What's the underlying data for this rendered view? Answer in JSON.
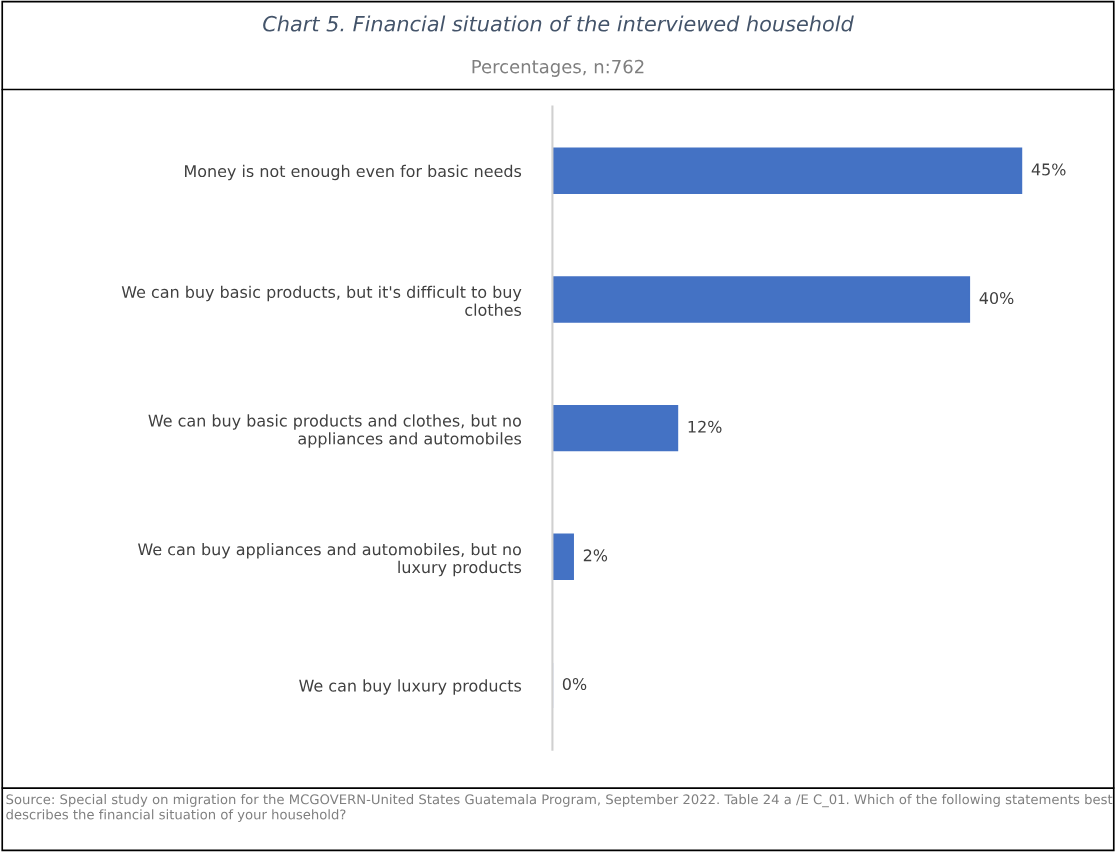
{
  "chart_data": {
    "type": "bar",
    "orientation": "horizontal",
    "title": "Chart 5. Financial situation of the interviewed household",
    "subtitle": "Percentages, n:762",
    "categories": [
      "Money is not enough even for basic needs",
      "We can buy basic products, but it's difficult to buy\nclothes",
      "We can buy basic products and clothes, but no\nappliances and automobiles",
      "We can buy appliances and automobiles, but no\nluxury products",
      "We can buy luxury products"
    ],
    "values": [
      45,
      40,
      12,
      2,
      0
    ],
    "color": "#4472c4",
    "value_labels": [
      "45%",
      "40%",
      "12%",
      "2%",
      "0%"
    ],
    "grid": false,
    "annotations": [
      "Source: Special study on migration for the MCGOVERN-United States Guatemala Program, September 2022. Table 24 a /E C_01. Which of the following statements best describes the financial situation of your household?"
    ]
  }
}
